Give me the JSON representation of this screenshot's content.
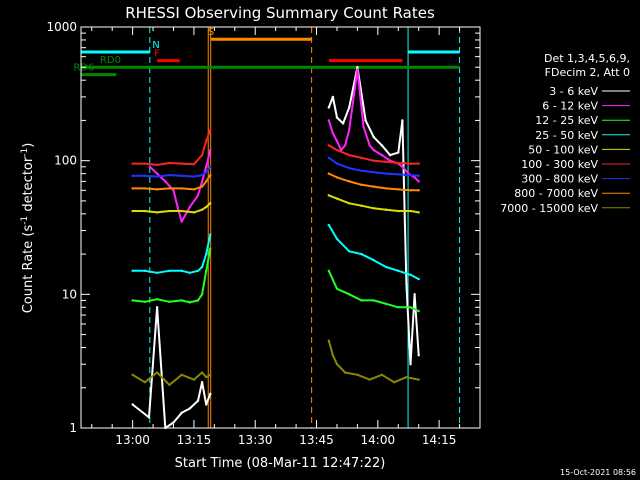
{
  "chart_data": {
    "type": "line",
    "title": "RHESSI Observing Summary Count Rates",
    "xlabel": "Start Time (08-Mar-11 12:47:22)",
    "ylabel_main": "Count Rate (s",
    "ylabel_sup1": "-1",
    "ylabel_mid": " detector",
    "ylabel_sup2": "-1",
    "ylabel_end": ")",
    "yscale": "log",
    "ylim": [
      1,
      1000
    ],
    "xlim": [
      "12:47:22",
      "14:25:00"
    ],
    "x_unit": "minutes after 12:00 UT",
    "x_ticks": [
      {
        "label": "13:00",
        "value": 60
      },
      {
        "label": "13:15",
        "value": 75
      },
      {
        "label": "13:30",
        "value": 90
      },
      {
        "label": "13:45",
        "value": 105
      },
      {
        "label": "14:00",
        "value": 120
      },
      {
        "label": "14:15",
        "value": 135
      }
    ],
    "y_ticks": [
      {
        "label": "1",
        "value": 1
      },
      {
        "label": "10",
        "value": 10
      },
      {
        "label": "100",
        "value": 100
      },
      {
        "label": "1000",
        "value": 1000
      }
    ],
    "legend_header": [
      "Det 1,3,4,5,6,9,",
      "FDecim 2, Att 0"
    ],
    "series": [
      {
        "name": "3 - 6 keV",
        "color": "#ffffff",
        "segments": [
          {
            "x": [
              60.0,
              64.0,
              66.0,
              68.0,
              70.0,
              72.0,
              74.0,
              76.0,
              77.0,
              78.0,
              79.0
            ],
            "y": [
              1.5,
              1.2,
              8.0,
              1.0,
              1.1,
              1.3,
              1.4,
              1.6,
              2.2,
              1.5,
              1.8
            ]
          },
          {
            "x": [
              108.0,
              109.0,
              110.0,
              111.5,
              113.0,
              115.0,
              117.0,
              119.0,
              121.0,
              123.0,
              125.0,
              126.0,
              127.0,
              128.0,
              129.0,
              130.0
            ],
            "y": [
              250.0,
              300.0,
              210.0,
              190.0,
              250.0,
              500.0,
              200.0,
              150.0,
              130.0,
              110.0,
              115.0,
              200.0,
              12.0,
              3.0,
              10.0,
              3.5
            ]
          }
        ]
      },
      {
        "name": "6 - 12 keV",
        "color": "#ff22ff",
        "segments": [
          {
            "x": [
              64.2,
              66.0,
              68.0,
              70.0,
              71.0,
              72.0,
              74.0,
              76.0,
              77.0,
              78.0,
              79.0
            ],
            "y": [
              90.0,
              80.0,
              70.0,
              60.0,
              45.0,
              35.0,
              45.0,
              55.0,
              70.0,
              90.0,
              120.0
            ]
          },
          {
            "x": [
              108.0,
              109.0,
              110.0,
              111.0,
              112.0,
              113.0,
              115.0,
              116.5,
              118.0,
              119.0,
              121.0,
              123.0,
              125.0,
              126.0,
              127.5,
              129.0,
              130.0
            ],
            "y": [
              200.0,
              160.0,
              140.0,
              120.0,
              130.0,
              170.0,
              480.0,
              180.0,
              130.0,
              120.0,
              110.0,
              100.0,
              95.0,
              90.0,
              80.0,
              75.0,
              70.0
            ]
          }
        ]
      },
      {
        "name": "12 - 25 keV",
        "color": "#22ff22",
        "segments": [
          {
            "x": [
              60.0,
              63.0,
              66.0,
              69.0,
              72.0,
              74.0,
              76.0,
              77.0,
              78.0,
              79.0
            ],
            "y": [
              9.0,
              8.8,
              9.2,
              8.8,
              9.0,
              8.7,
              9.0,
              10.0,
              15.0,
              22.0
            ]
          },
          {
            "x": [
              108.0,
              110.0,
              113.0,
              116.0,
              119.0,
              122.0,
              125.0,
              128.0,
              130.0
            ],
            "y": [
              15.0,
              11.0,
              10.0,
              9.0,
              9.0,
              8.5,
              8.0,
              8.0,
              7.5
            ]
          }
        ]
      },
      {
        "name": "25 - 50 keV",
        "color": "#00ffff",
        "segments": [
          {
            "x": [
              60.0,
              63.0,
              66.0,
              69.0,
              72.0,
              74.0,
              76.0,
              77.0,
              78.0,
              79.0
            ],
            "y": [
              15.0,
              15.0,
              14.5,
              15.0,
              15.0,
              14.5,
              15.0,
              16.0,
              20.0,
              28.0
            ]
          },
          {
            "x": [
              108.0,
              110.0,
              113.0,
              116.0,
              119.0,
              122.0,
              125.0,
              128.0,
              130.0
            ],
            "y": [
              33.0,
              26.0,
              21.0,
              20.0,
              18.0,
              16.0,
              15.0,
              14.0,
              13.0
            ]
          }
        ]
      },
      {
        "name": "50 - 100 keV",
        "color": "#dddd00",
        "segments": [
          {
            "x": [
              60.0,
              63.0,
              66.0,
              69.0,
              72.0,
              75.0,
              77.0,
              78.0,
              79.0
            ],
            "y": [
              42.0,
              42.0,
              41.0,
              42.0,
              42.0,
              41.0,
              43.0,
              45.0,
              48.0
            ]
          },
          {
            "x": [
              108.0,
              110.0,
              113.0,
              116.0,
              119.0,
              122.0,
              125.0,
              128.0,
              130.0
            ],
            "y": [
              55.0,
              52.0,
              48.0,
              46.0,
              44.0,
              43.0,
              42.0,
              42.0,
              41.0
            ]
          }
        ]
      },
      {
        "name": "100 - 300 keV",
        "color": "#ff2222",
        "segments": [
          {
            "x": [
              60.0,
              63.0,
              66.0,
              69.0,
              72.0,
              75.0,
              77.0,
              78.0,
              79.0
            ],
            "y": [
              95.0,
              95.0,
              93.0,
              96.0,
              95.0,
              94.0,
              110.0,
              140.0,
              170.0
            ]
          },
          {
            "x": [
              108.0,
              110.0,
              113.0,
              116.0,
              119.0,
              122.0,
              125.0,
              128.0,
              130.0
            ],
            "y": [
              130.0,
              120.0,
              110.0,
              105.0,
              100.0,
              98.0,
              96.0,
              95.0,
              95.0
            ]
          }
        ]
      },
      {
        "name": "300 - 800 keV",
        "color": "#2233ff",
        "segments": [
          {
            "x": [
              60.0,
              63.0,
              66.0,
              69.0,
              72.0,
              75.0,
              77.0,
              78.0,
              79.0
            ],
            "y": [
              77.0,
              77.0,
              76.0,
              78.0,
              77.0,
              76.0,
              78.0,
              82.0,
              90.0
            ]
          },
          {
            "x": [
              108.0,
              110.0,
              113.0,
              116.0,
              119.0,
              122.0,
              125.0,
              128.0,
              130.0
            ],
            "y": [
              105.0,
              95.0,
              88.0,
              84.0,
              82.0,
              80.0,
              79.0,
              78.0,
              77.0
            ]
          }
        ]
      },
      {
        "name": "800 - 7000 keV",
        "color": "#ff8800",
        "segments": [
          {
            "x": [
              60.0,
              63.0,
              66.0,
              69.0,
              72.0,
              75.0,
              77.0,
              78.0,
              79.0
            ],
            "y": [
              62.0,
              62.0,
              61.0,
              62.0,
              62.0,
              61.0,
              64.0,
              70.0,
              78.0
            ]
          },
          {
            "x": [
              108.0,
              110.0,
              113.0,
              116.0,
              119.0,
              122.0,
              125.0,
              128.0,
              130.0
            ],
            "y": [
              80.0,
              75.0,
              70.0,
              66.0,
              64.0,
              62.0,
              61.0,
              60.0,
              60.0
            ]
          }
        ]
      },
      {
        "name": "7000 - 15000 keV",
        "color": "#888800",
        "segments": [
          {
            "x": [
              60.0,
              63.0,
              66.0,
              69.0,
              72.0,
              75.0,
              77.0,
              78.0,
              79.0
            ],
            "y": [
              2.5,
              2.2,
              2.6,
              2.1,
              2.5,
              2.3,
              2.6,
              2.4,
              2.5
            ]
          },
          {
            "x": [
              108.0,
              109.0,
              110.0,
              112.0,
              115.0,
              118.0,
              121.0,
              124.0,
              127.0,
              130.0
            ],
            "y": [
              4.5,
              3.5,
              3.0,
              2.6,
              2.5,
              2.3,
              2.5,
              2.2,
              2.4,
              2.3
            ]
          }
        ]
      }
    ],
    "annotation_bars": [
      {
        "label": "N",
        "color": "#00ffff",
        "label_x": 64.8,
        "segments": [
          [
            47.4,
            64.2
          ],
          [
            127.5,
            140.0
          ]
        ],
        "y": 650
      },
      {
        "label": "F",
        "color": "#ff0000",
        "label_x": 65.3,
        "segments": [
          [
            66.0,
            71.5
          ],
          [
            108.0,
            126.0
          ]
        ],
        "y": 560
      },
      {
        "label": "S",
        "color": "#ff8800",
        "label_x": 78.4,
        "segments": [
          [
            79.2,
            103.8
          ]
        ],
        "y": 810
      },
      {
        "label": "RD0",
        "color": "#008800",
        "label_x": 52.0,
        "segments": [
          [
            47.4,
            140.0
          ]
        ],
        "y": 500
      },
      {
        "label": "RD6",
        "color": "#008800",
        "label_x": 45.5,
        "segments": [
          [
            47.4,
            56.0
          ]
        ],
        "y": 440
      }
    ],
    "vlines": [
      {
        "x": 64.2,
        "color": "#00ffff",
        "style": "dashed"
      },
      {
        "x": 78.5,
        "color": "#ff8800",
        "style": "solid"
      },
      {
        "x": 79.1,
        "color": "#ff8800",
        "style": "solid"
      },
      {
        "x": 103.8,
        "color": "#ff8800",
        "style": "dashed"
      },
      {
        "x": 127.4,
        "color": "#00ffff",
        "style": "solid"
      },
      {
        "x": 140.0,
        "color": "#00ffff",
        "style": "dashed"
      }
    ],
    "grid": false,
    "legend_position": "right"
  },
  "footer_date": "15-Oct-2021 08:56"
}
